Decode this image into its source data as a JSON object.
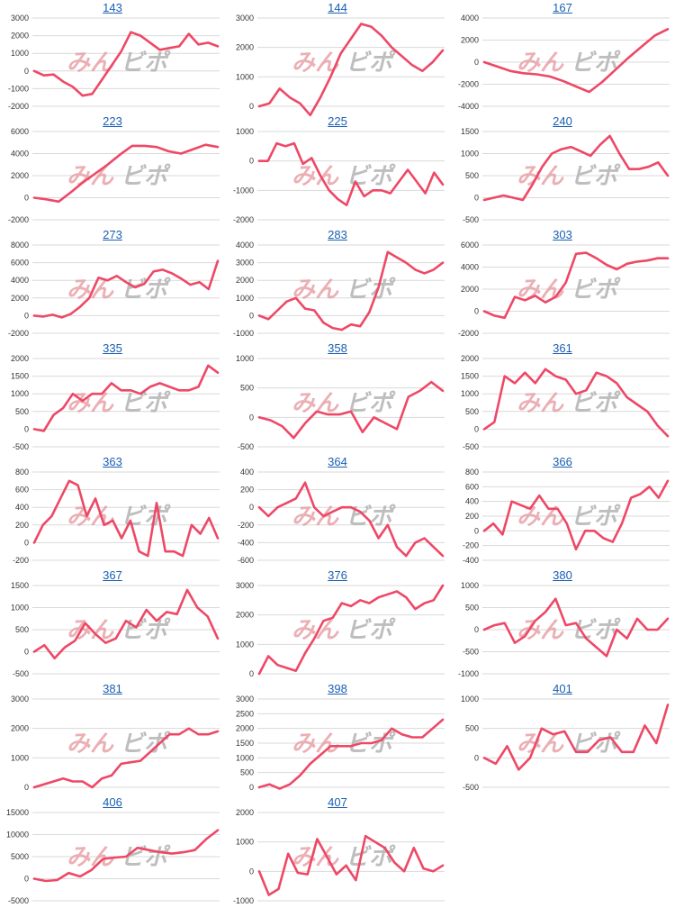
{
  "watermark": {
    "part1": "みん",
    "part2": "ビポ"
  },
  "colors": {
    "line": "#ee4866",
    "title": "#1a5fb4",
    "grid": "#d9d9d9"
  },
  "chart_data": [
    {
      "type": "line",
      "title": "143",
      "ylim": [
        -2000,
        3000
      ],
      "yticks": [
        -2000,
        -1000,
        0,
        1000,
        2000,
        3000
      ],
      "values": [
        0,
        -250,
        -200,
        -600,
        -900,
        -1400,
        -1300,
        -500,
        300,
        1100,
        2200,
        2000,
        1600,
        1200,
        1300,
        1400,
        2100,
        1500,
        1600,
        1400
      ]
    },
    {
      "type": "line",
      "title": "144",
      "ylim": [
        0,
        3000
      ],
      "yticks": [
        0,
        1000,
        2000,
        3000
      ],
      "values": [
        0,
        100,
        600,
        300,
        100,
        -300,
        300,
        1000,
        1800,
        2300,
        2800,
        2700,
        2400,
        2000,
        1700,
        1400,
        1200,
        1500,
        1900
      ]
    },
    {
      "type": "line",
      "title": "167",
      "ylim": [
        -4000,
        4000
      ],
      "yticks": [
        -4000,
        -2000,
        0,
        2000,
        4000
      ],
      "values": [
        0,
        -400,
        -800,
        -1000,
        -1100,
        -1300,
        -1700,
        -2200,
        -2700,
        -1800,
        -700,
        400,
        1400,
        2400,
        3000
      ]
    },
    {
      "type": "line",
      "title": "223",
      "ylim": [
        -2000,
        6000
      ],
      "yticks": [
        -2000,
        0,
        2000,
        4000,
        6000
      ],
      "values": [
        0,
        -150,
        -350,
        500,
        1400,
        2200,
        3000,
        3900,
        4700,
        4700,
        4600,
        4200,
        4000,
        4400,
        4800,
        4600
      ]
    },
    {
      "type": "line",
      "title": "225",
      "ylim": [
        -2000,
        1000
      ],
      "yticks": [
        -2000,
        -1000,
        0,
        1000
      ],
      "values": [
        0,
        0,
        600,
        500,
        600,
        -100,
        100,
        -500,
        -1000,
        -1300,
        -1500,
        -700,
        -1200,
        -1000,
        -1000,
        -1100,
        -700,
        -300,
        -700,
        -1100,
        -400,
        -800
      ]
    },
    {
      "type": "line",
      "title": "240",
      "ylim": [
        -500,
        1500
      ],
      "yticks": [
        -500,
        0,
        500,
        1000,
        1500
      ],
      "values": [
        -50,
        0,
        50,
        0,
        -50,
        300,
        700,
        1000,
        1100,
        1150,
        1050,
        950,
        1200,
        1400,
        1000,
        650,
        650,
        700,
        800,
        500
      ]
    },
    {
      "type": "line",
      "title": "273",
      "ylim": [
        -2000,
        8000
      ],
      "yticks": [
        -2000,
        0,
        2000,
        4000,
        6000,
        8000
      ],
      "values": [
        0,
        -100,
        100,
        -200,
        200,
        1000,
        2000,
        4300,
        4000,
        4500,
        3800,
        3200,
        3600,
        5000,
        5200,
        4800,
        4200,
        3500,
        3800,
        3000,
        6200
      ]
    },
    {
      "type": "line",
      "title": "283",
      "ylim": [
        -1000,
        4000
      ],
      "yticks": [
        -1000,
        0,
        1000,
        2000,
        3000,
        4000
      ],
      "values": [
        0,
        -200,
        300,
        800,
        1000,
        400,
        300,
        -400,
        -700,
        -800,
        -500,
        -600,
        200,
        1600,
        3600,
        3300,
        3000,
        2600,
        2400,
        2600,
        3000
      ]
    },
    {
      "type": "line",
      "title": "303",
      "ylim": [
        -2000,
        6000
      ],
      "yticks": [
        -2000,
        0,
        2000,
        4000,
        6000
      ],
      "values": [
        0,
        -400,
        -600,
        1300,
        1000,
        1400,
        800,
        1300,
        2600,
        5200,
        5300,
        4800,
        4200,
        3800,
        4300,
        4500,
        4600,
        4800,
        4800
      ]
    },
    {
      "type": "line",
      "title": "335",
      "ylim": [
        -500,
        2000
      ],
      "yticks": [
        -500,
        0,
        500,
        1000,
        1500,
        2000
      ],
      "values": [
        0,
        -50,
        400,
        600,
        1000,
        800,
        1000,
        1000,
        1300,
        1100,
        1100,
        1000,
        1200,
        1300,
        1200,
        1100,
        1100,
        1200,
        1800,
        1600
      ]
    },
    {
      "type": "line",
      "title": "358",
      "ylim": [
        -500,
        1000
      ],
      "yticks": [
        -500,
        0,
        500,
        1000
      ],
      "values": [
        0,
        -50,
        -150,
        -350,
        -100,
        100,
        50,
        50,
        100,
        -250,
        0,
        -100,
        -200,
        350,
        450,
        600,
        450
      ]
    },
    {
      "type": "line",
      "title": "361",
      "ylim": [
        -500,
        2000
      ],
      "yticks": [
        -500,
        0,
        500,
        1000,
        1500,
        2000
      ],
      "values": [
        0,
        200,
        1500,
        1300,
        1600,
        1300,
        1700,
        1500,
        1400,
        1000,
        1100,
        1600,
        1500,
        1300,
        900,
        700,
        500,
        100,
        -200
      ]
    },
    {
      "type": "line",
      "title": "363",
      "ylim": [
        -200,
        800
      ],
      "yticks": [
        -200,
        0,
        200,
        400,
        600,
        800
      ],
      "values": [
        0,
        200,
        300,
        500,
        700,
        650,
        300,
        500,
        200,
        250,
        50,
        250,
        -100,
        -150,
        450,
        -100,
        -100,
        -150,
        200,
        100,
        280,
        50
      ]
    },
    {
      "type": "line",
      "title": "364",
      "ylim": [
        -600,
        400
      ],
      "yticks": [
        -600,
        -400,
        -200,
        0,
        200,
        400
      ],
      "values": [
        0,
        -100,
        0,
        50,
        100,
        280,
        0,
        -100,
        -50,
        0,
        0,
        -50,
        -150,
        -350,
        -200,
        -450,
        -550,
        -400,
        -350,
        -450,
        -550
      ]
    },
    {
      "type": "line",
      "title": "366",
      "ylim": [
        -400,
        800
      ],
      "yticks": [
        -400,
        -200,
        0,
        200,
        400,
        600,
        800
      ],
      "values": [
        0,
        100,
        -50,
        400,
        350,
        300,
        480,
        300,
        300,
        100,
        -250,
        0,
        0,
        -100,
        -150,
        100,
        450,
        500,
        600,
        450,
        680
      ]
    },
    {
      "type": "line",
      "title": "367",
      "ylim": [
        -500,
        1500
      ],
      "yticks": [
        -500,
        0,
        500,
        1000,
        1500
      ],
      "values": [
        0,
        150,
        -150,
        100,
        250,
        650,
        400,
        200,
        300,
        700,
        550,
        950,
        700,
        900,
        850,
        1400,
        1000,
        800,
        300
      ]
    },
    {
      "type": "line",
      "title": "376",
      "ylim": [
        0,
        3000
      ],
      "yticks": [
        0,
        1000,
        2000,
        3000
      ],
      "values": [
        0,
        600,
        300,
        200,
        100,
        700,
        1200,
        1800,
        1900,
        2400,
        2300,
        2500,
        2400,
        2600,
        2700,
        2800,
        2600,
        2200,
        2400,
        2500,
        3000
      ]
    },
    {
      "type": "line",
      "title": "380",
      "ylim": [
        -1000,
        1000
      ],
      "yticks": [
        -1000,
        -500,
        0,
        500,
        1000
      ],
      "values": [
        0,
        100,
        150,
        -300,
        -150,
        200,
        400,
        700,
        100,
        150,
        -200,
        -400,
        -600,
        0,
        -200,
        250,
        0,
        0,
        250
      ]
    },
    {
      "type": "line",
      "title": "381",
      "ylim": [
        0,
        3000
      ],
      "yticks": [
        0,
        1000,
        2000,
        3000
      ],
      "values": [
        0,
        100,
        200,
        300,
        200,
        200,
        0,
        300,
        400,
        800,
        850,
        900,
        1200,
        1500,
        1800,
        1800,
        2000,
        1800,
        1800,
        1900
      ]
    },
    {
      "type": "line",
      "title": "398",
      "ylim": [
        0,
        3000
      ],
      "yticks": [
        0,
        500,
        1000,
        1500,
        2000,
        2500,
        3000
      ],
      "values": [
        0,
        100,
        -50,
        100,
        400,
        800,
        1100,
        1400,
        1400,
        1400,
        1500,
        1500,
        1600,
        2000,
        1800,
        1700,
        1700,
        2000,
        2300
      ]
    },
    {
      "type": "line",
      "title": "401",
      "ylim": [
        -500,
        1000
      ],
      "yticks": [
        -500,
        0,
        500,
        1000
      ],
      "values": [
        0,
        -100,
        200,
        -200,
        0,
        500,
        400,
        450,
        100,
        100,
        300,
        350,
        100,
        100,
        550,
        250,
        900
      ]
    },
    {
      "type": "line",
      "title": "406",
      "ylim": [
        -5000,
        15000
      ],
      "yticks": [
        -5000,
        0,
        5000,
        10000,
        15000
      ],
      "values": [
        0,
        -500,
        -300,
        1300,
        500,
        2000,
        4500,
        4800,
        5000,
        7000,
        6500,
        6000,
        5700,
        6000,
        6500,
        9000,
        11000
      ]
    },
    {
      "type": "line",
      "title": "407",
      "ylim": [
        -1000,
        2000
      ],
      "yticks": [
        -1000,
        0,
        1000,
        2000
      ],
      "values": [
        0,
        -800,
        -600,
        600,
        -50,
        -100,
        1100,
        500,
        -100,
        200,
        -300,
        1200,
        1000,
        800,
        300,
        0,
        800,
        100,
        0,
        200
      ]
    }
  ]
}
